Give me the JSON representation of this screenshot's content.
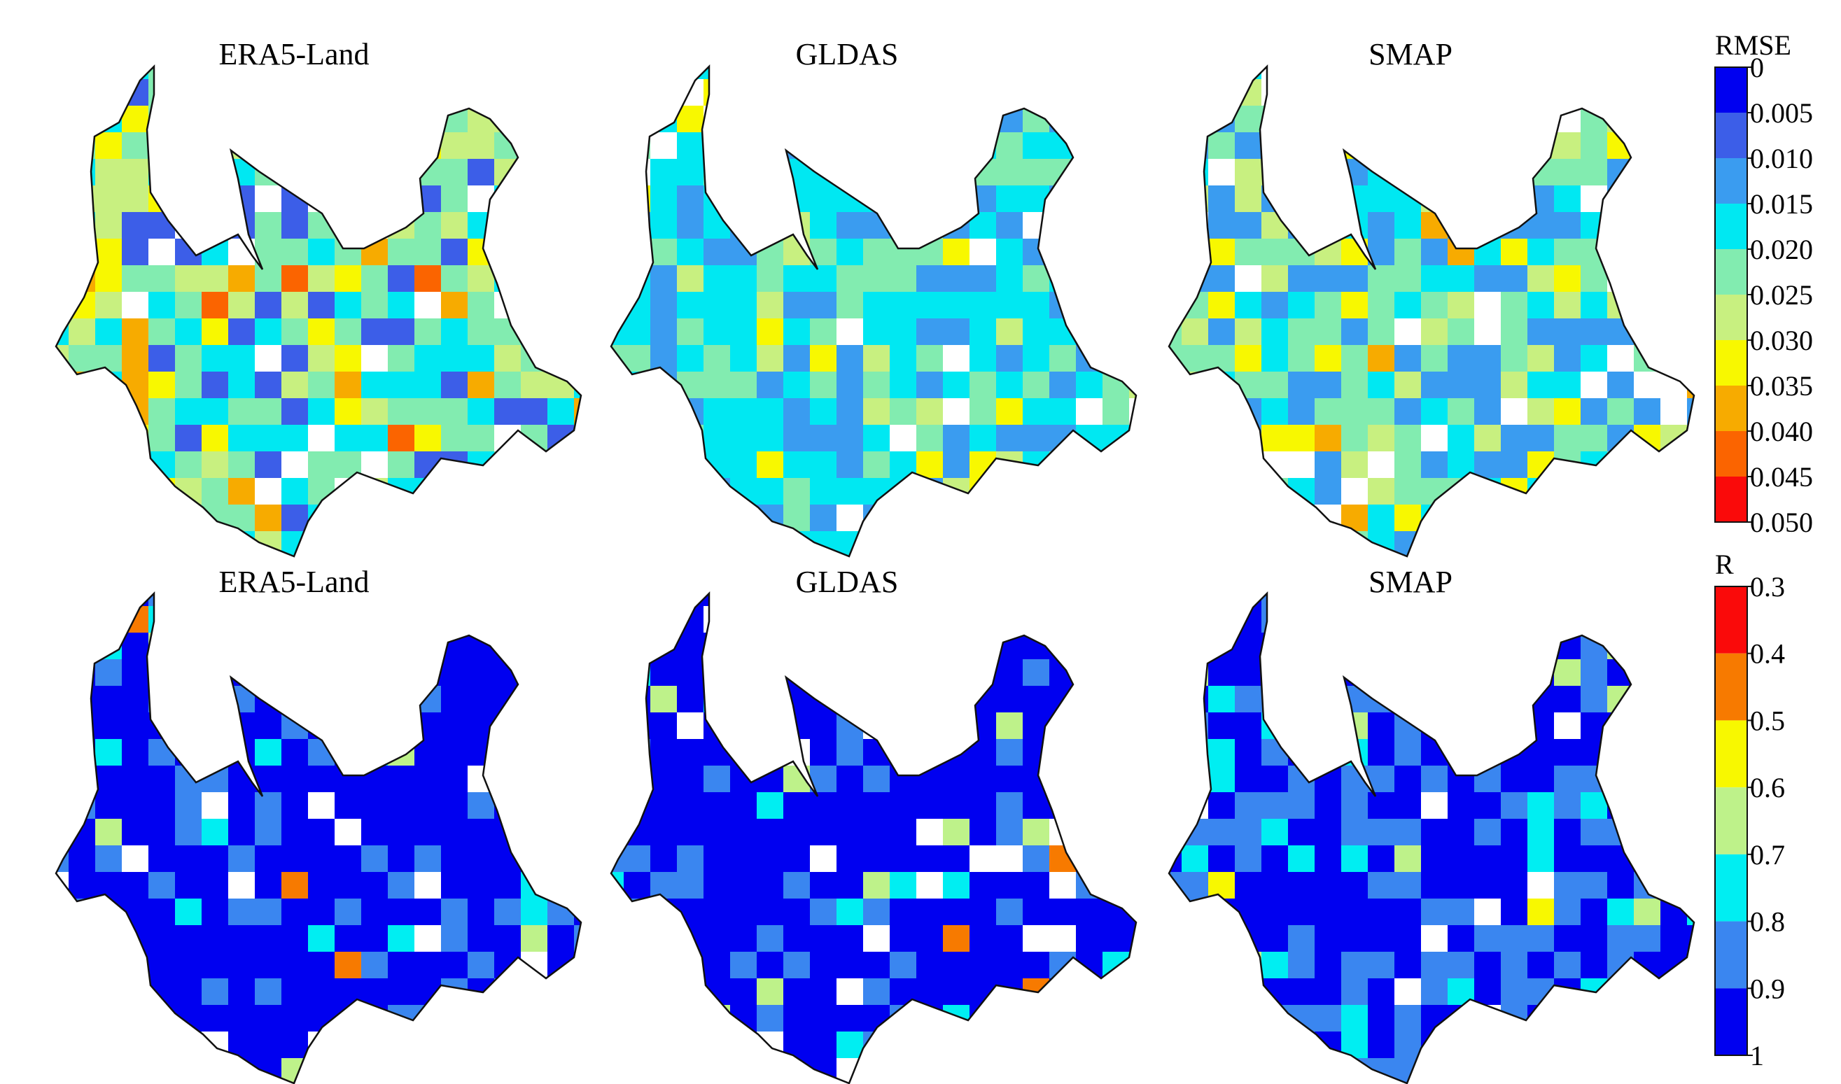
{
  "rows": [
    {
      "metric": "RMSE",
      "panels": [
        {
          "title": "ERA5-Land"
        },
        {
          "title": "GLDAS"
        },
        {
          "title": "SMAP"
        }
      ],
      "colorbar": {
        "title": "RMSE",
        "ticks": [
          "0",
          "0.005",
          "0.010",
          "0.015",
          "0.020",
          "0.025",
          "0.030",
          "0.035",
          "0.040",
          "0.045",
          "0.050"
        ],
        "colors": [
          "#0000f0",
          "#3c5ee8",
          "#3a9cf0",
          "#00e8f2",
          "#82ecb0",
          "#c8f080",
          "#f8f800",
          "#f7ab00",
          "#fb6400",
          "#fa0a0a"
        ]
      }
    },
    {
      "metric": "R",
      "panels": [
        {
          "title": "ERA5-Land"
        },
        {
          "title": "GLDAS"
        },
        {
          "title": "SMAP"
        }
      ],
      "colorbar": {
        "title": "R",
        "ticks": [
          "0.3",
          "0.4",
          "0.5",
          "0.6",
          "0.7",
          "0.8",
          "0.9",
          "1"
        ],
        "colors": [
          "#fa0a0a",
          "#f77a00",
          "#f8f800",
          "#bef28a",
          "#00eef2",
          "#3a86f0",
          "#0000f0"
        ]
      }
    }
  ]
}
